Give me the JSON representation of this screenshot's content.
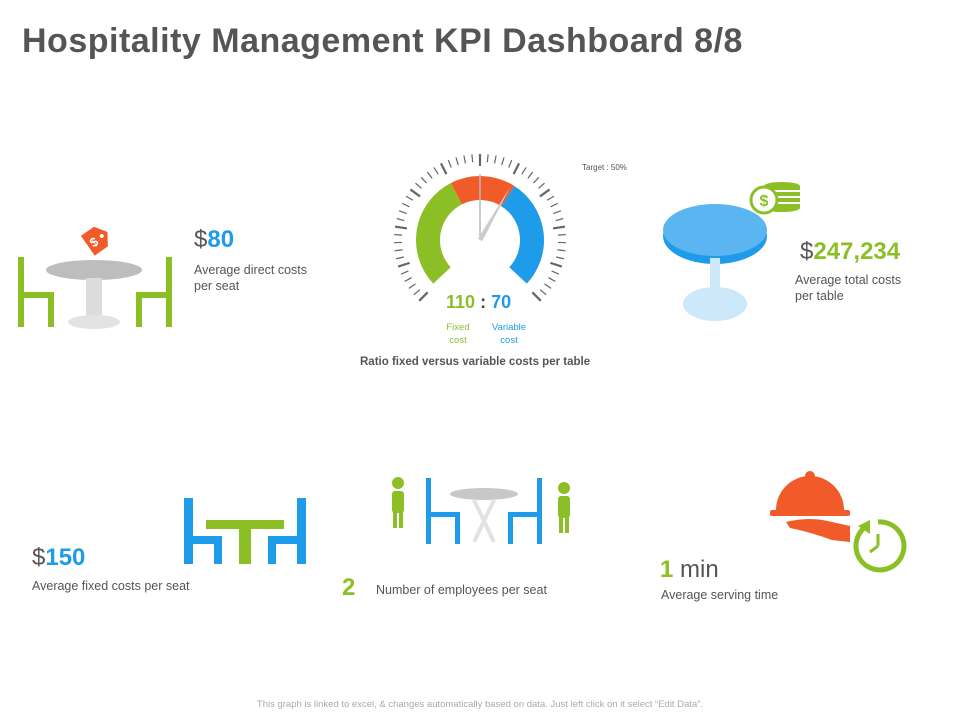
{
  "title": "Hospitality Management KPI Dashboard 8/8",
  "colors": {
    "blue": "#1e9be9",
    "green": "#8cbf25",
    "orange": "#f15a29",
    "gray": "#888888"
  },
  "kpis": {
    "direct_cost": {
      "currency": "$",
      "value": "80",
      "label_line1": "Average direct costs",
      "label_line2": "per seat"
    },
    "total_cost": {
      "currency": "$",
      "value": "247,234",
      "label_line1": "Average total costs",
      "label_line2": "per table"
    },
    "fixed_cost": {
      "currency": "$",
      "value": "150",
      "label": "Average fixed costs per seat"
    },
    "employees": {
      "value": "2",
      "label": "Number of employees per seat"
    },
    "serving_time": {
      "value": "1",
      "unit": "min",
      "label": "Average serving time"
    }
  },
  "gauge": {
    "target_label": "Target : 50%",
    "fixed_value": "110",
    "separator": ":",
    "variable_value": "70",
    "fixed_label_line1": "Fixed",
    "fixed_label_line2": "cost",
    "variable_label_line1": "Variable",
    "variable_label_line2": "cost",
    "caption": "Ratio fixed versus variable costs per table",
    "needle_fraction": 0.61
  },
  "icons": {
    "dining_set_price": "dining-table-with-price-tag-icon",
    "table_coins": "round-table-with-coins-icon",
    "table_chairs": "table-with-chairs-icon",
    "staff_table": "employees-at-table-icon",
    "cloche_timer": "serving-cloche-with-timer-icon"
  },
  "footer": "This graph is linked to excel, & changes automatically based on data. Just left click on it select “Edit Data”."
}
